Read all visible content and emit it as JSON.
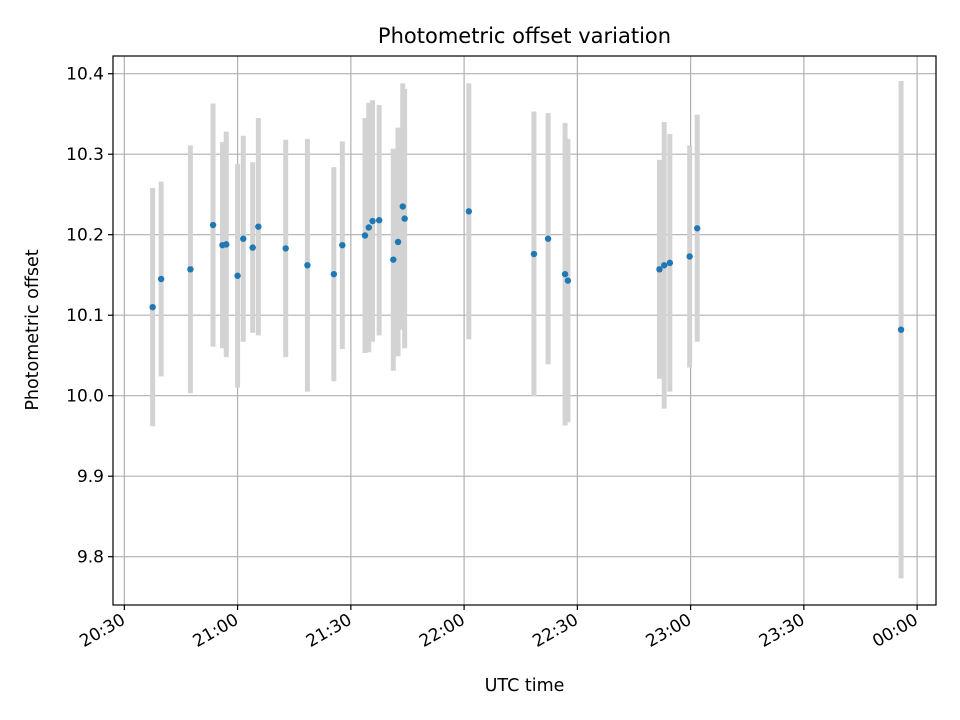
{
  "chart_data": {
    "type": "scatter",
    "title": "Photometric offset variation",
    "xlabel": "UTC time",
    "ylabel": "Photometric offset",
    "x_axis_kind": "time",
    "xlim": [
      "20:27",
      "00:05"
    ],
    "ylim": [
      9.74,
      10.422
    ],
    "grid": true,
    "xticks": [
      "20:30",
      "21:00",
      "21:30",
      "22:00",
      "22:30",
      "23:00",
      "23:30",
      "00:00"
    ],
    "yticks": [
      "9.8",
      "9.9",
      "10.0",
      "10.1",
      "10.2",
      "10.3",
      "10.4"
    ],
    "marker_color": "#1f77b4",
    "errorbar_color": "#d3d3d3",
    "points": [
      {
        "t": "20:37:30",
        "y": 10.11,
        "err": 0.148
      },
      {
        "t": "20:39:45",
        "y": 10.145,
        "err": 0.121
      },
      {
        "t": "20:47:30",
        "y": 10.157,
        "err": 0.154
      },
      {
        "t": "20:53:30",
        "y": 10.212,
        "err": 0.151
      },
      {
        "t": "20:56:00",
        "y": 10.187,
        "err": 0.128
      },
      {
        "t": "20:57:00",
        "y": 10.188,
        "err": 0.14
      },
      {
        "t": "21:00:00",
        "y": 10.149,
        "err": 0.139
      },
      {
        "t": "21:01:30",
        "y": 10.195,
        "err": 0.128
      },
      {
        "t": "21:04:00",
        "y": 10.184,
        "err": 0.106
      },
      {
        "t": "21:05:30",
        "y": 10.21,
        "err": 0.135
      },
      {
        "t": "21:12:45",
        "y": 10.183,
        "err": 0.135
      },
      {
        "t": "21:18:30",
        "y": 10.162,
        "err": 0.157
      },
      {
        "t": "21:25:30",
        "y": 10.151,
        "err": 0.133
      },
      {
        "t": "21:27:45",
        "y": 10.187,
        "err": 0.129
      },
      {
        "t": "21:33:45",
        "y": 10.199,
        "err": 0.146
      },
      {
        "t": "21:34:45",
        "y": 10.209,
        "err": 0.155
      },
      {
        "t": "21:35:45",
        "y": 10.217,
        "err": 0.15
      },
      {
        "t": "21:37:30",
        "y": 10.218,
        "err": 0.143
      },
      {
        "t": "21:41:15",
        "y": 10.169,
        "err": 0.138
      },
      {
        "t": "21:42:30",
        "y": 10.191,
        "err": 0.142
      },
      {
        "t": "21:43:45",
        "y": 10.235,
        "err": 0.153
      },
      {
        "t": "21:44:15",
        "y": 10.22,
        "err": 0.161
      },
      {
        "t": "22:01:15",
        "y": 10.229,
        "err": 0.159
      },
      {
        "t": "22:18:30",
        "y": 10.176,
        "err": 0.177
      },
      {
        "t": "22:22:15",
        "y": 10.195,
        "err": 0.156
      },
      {
        "t": "22:26:45",
        "y": 10.151,
        "err": 0.188
      },
      {
        "t": "22:27:30",
        "y": 10.143,
        "err": 0.176
      },
      {
        "t": "22:51:45",
        "y": 10.157,
        "err": 0.136
      },
      {
        "t": "22:53:00",
        "y": 10.162,
        "err": 0.178
      },
      {
        "t": "22:54:30",
        "y": 10.165,
        "err": 0.16
      },
      {
        "t": "22:59:45",
        "y": 10.173,
        "err": 0.138
      },
      {
        "t": "23:01:45",
        "y": 10.208,
        "err": 0.141
      },
      {
        "t": "23:55:45",
        "y": 10.082,
        "err": 0.309
      }
    ]
  }
}
